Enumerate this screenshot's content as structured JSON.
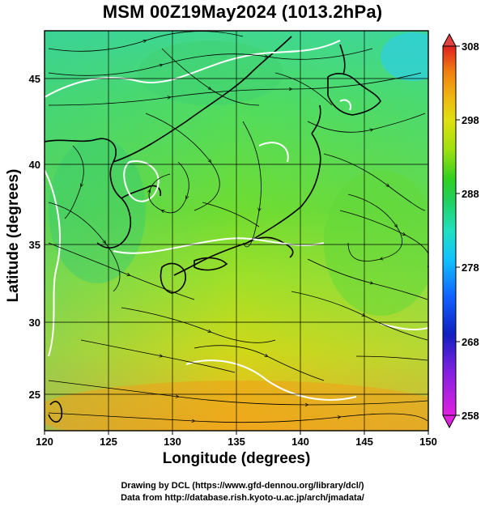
{
  "title": "MSM 00Z19May2024 (1013.2hPa)",
  "axes": {
    "xlabel": "Longitude (degrees)",
    "ylabel": "Latitude  (degrees)",
    "x_ticks": [
      "120",
      "125",
      "130",
      "135",
      "140",
      "145",
      "150"
    ],
    "y_ticks": [
      "25",
      "30",
      "35",
      "40",
      "45"
    ]
  },
  "colorbar": {
    "ticks": [
      "258",
      "268",
      "278",
      "288",
      "298",
      "308"
    ],
    "colors": [
      "#e020e0",
      "#8020e0",
      "#1020c0",
      "#1060ff",
      "#10c0ff",
      "#20e0c0",
      "#20d060",
      "#30d020",
      "#a0e010",
      "#e0e010",
      "#f0b010",
      "#f08010",
      "#f04020",
      "#e02020"
    ]
  },
  "credits": {
    "line1": "Drawing by DCL (https://www.gfd-dennou.org/library/dcl/)",
    "line2": "Data from http://database.rish.kyoto-u.ac.jp/arch/jmadata/"
  }
}
